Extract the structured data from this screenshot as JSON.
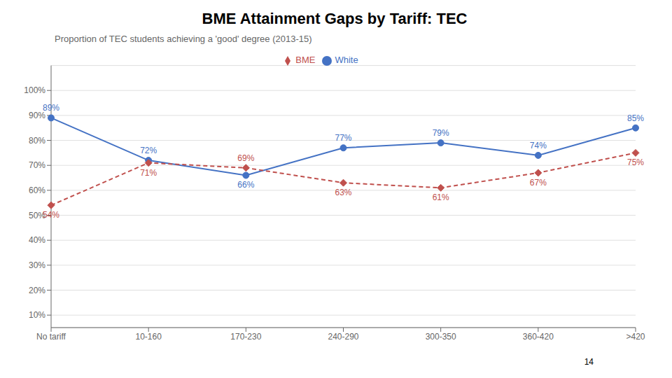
{
  "chart_data": {
    "type": "line",
    "title": "BME Attainment Gaps by Tariff: TEC",
    "subtitle": "Proportion of TEC students achieving a 'good' degree (2013-15)",
    "annotations": [
      "14"
    ],
    "categories": [
      "No tariff",
      "10-160",
      "170-230",
      "240-290",
      "300-350",
      "360-420",
      ">420"
    ],
    "series": [
      {
        "name": "White",
        "color": "#4472C4",
        "marker": "circle",
        "line_style": "solid",
        "values": [
          89,
          72,
          66,
          77,
          79,
          74,
          85
        ],
        "value_labels": [
          "89%",
          "72%",
          "66%",
          "77%",
          "79%",
          "74%",
          "85%"
        ]
      },
      {
        "name": "BME",
        "color": "#C0504D",
        "marker": "diamond",
        "line_style": "dashed",
        "values": [
          54,
          71,
          69,
          63,
          61,
          67,
          75
        ],
        "value_labels": [
          "54%",
          "71%",
          "69%",
          "63%",
          "61%",
          "67%",
          "75%"
        ]
      }
    ],
    "ylim": [
      5,
      110
    ],
    "yticks": [
      {
        "value": 10,
        "label": "10%"
      },
      {
        "value": 20,
        "label": "20%"
      },
      {
        "value": 30,
        "label": "30%"
      },
      {
        "value": 40,
        "label": "40%"
      },
      {
        "value": 50,
        "label": "50%"
      },
      {
        "value": 60,
        "label": "60%"
      },
      {
        "value": 70,
        "label": "70%"
      },
      {
        "value": 80,
        "label": "80%"
      },
      {
        "value": 90,
        "label": "90%"
      },
      {
        "value": 100,
        "label": "100%"
      }
    ],
    "grid": true,
    "legend": "top",
    "data_labels": true
  }
}
